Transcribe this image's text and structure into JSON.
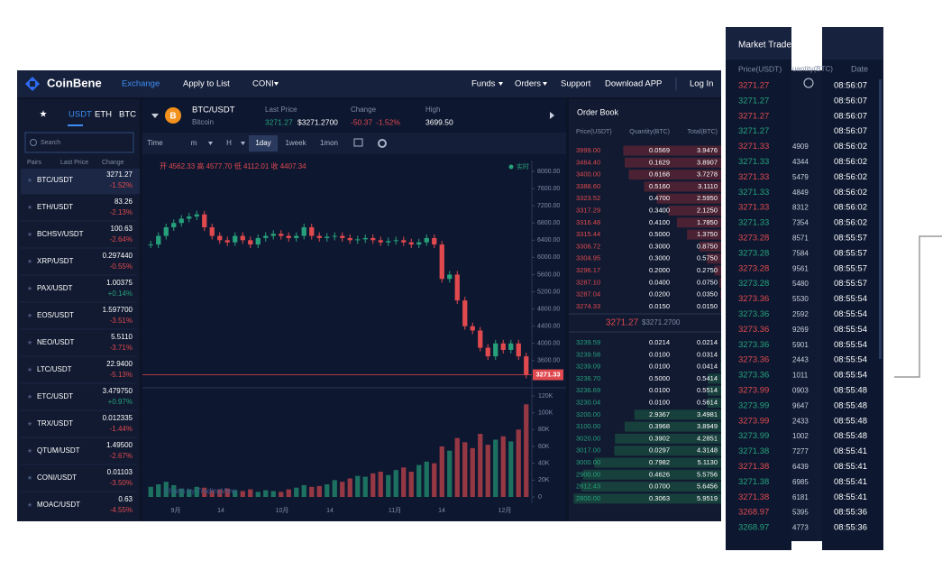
{
  "nav": {
    "brand": "CoinBene",
    "links": [
      "Exchange",
      "Apply to List",
      "CONI",
      "Funds",
      "Orders",
      "Support",
      "Download APP",
      "Log In"
    ]
  },
  "pairs_panel": {
    "tabs": [
      "USDT",
      "ETH",
      "BTC"
    ],
    "search_placeholder": "Search",
    "headers": [
      "Pairs",
      "Last Price",
      "Change"
    ],
    "rows": [
      [
        "BTC/USDT",
        "3271.27",
        "-1.52%"
      ],
      [
        "ETH/USDT",
        "83.26",
        "-2.13%"
      ],
      [
        "BCHSV/USDT",
        "100.63",
        "-2.64%"
      ],
      [
        "XRP/USDT",
        "0.297440",
        "-0.55%"
      ],
      [
        "PAX/USDT",
        "1.00375",
        "+0.14%"
      ],
      [
        "EOS/USDT",
        "1.597700",
        "-3.51%"
      ],
      [
        "NEO/USDT",
        "5.5110",
        "-3.71%"
      ],
      [
        "LTC/USDT",
        "22.9400",
        "-5.13%"
      ],
      [
        "ETC/USDT",
        "3.479750",
        "+0.97%"
      ],
      [
        "TRX/USDT",
        "0.012335",
        "-1.44%"
      ],
      [
        "QTUM/USDT",
        "1.49500",
        "-2.67%"
      ],
      [
        "CONI/USDT",
        "0.01103",
        "-3.50%"
      ],
      [
        "MOAC/USDT",
        "0.63",
        "-4.55%"
      ]
    ]
  },
  "ticker": {
    "pair": "BTC/USDT",
    "name": "Bitcoin",
    "last_price_label": "Last Price",
    "last_price": "3271.27",
    "last_price_usd": "$3271.2700",
    "change_label": "Change",
    "change": "-50.37",
    "change_pct": "-1.52%",
    "high_label": "High",
    "high": "3699.50"
  },
  "toolbar": [
    "Time",
    "m",
    "H",
    "1day",
    "1week",
    "1mon"
  ],
  "chart_data": {
    "type": "candlestick",
    "legend": "开 4562.33 高 4577.70 低 4112.01 收 4407.34",
    "realtime_label": "实时",
    "watermark": "Charts by TradingView",
    "x_labels": [
      "9月",
      "14",
      "10月",
      "14",
      "11月",
      "14",
      "12月"
    ],
    "closes": [
      6300,
      6500,
      6700,
      6800,
      6900,
      6950,
      7000,
      6700,
      6500,
      6400,
      6350,
      6500,
      6400,
      6300,
      6450,
      6500,
      6550,
      6500,
      6450,
      6500,
      6700,
      6500,
      6450,
      6480,
      6500,
      6450,
      6400,
      6420,
      6450,
      6400,
      6350,
      6380,
      6400,
      6350,
      6300,
      6350,
      6450,
      6300,
      5500,
      5600,
      5000,
      4400,
      4300,
      3900,
      3700,
      4000,
      3850,
      4000,
      3700,
      3271.33
    ],
    "volumes": [
      12000,
      15000,
      18000,
      14000,
      10000,
      9000,
      12000,
      11000,
      8000,
      9000,
      10000,
      8000,
      7000,
      9000,
      6000,
      8000,
      7000,
      6000,
      9000,
      11000,
      14000,
      12000,
      13000,
      15000,
      20000,
      18000,
      22000,
      25000,
      24000,
      28000,
      30000,
      26000,
      32000,
      35000,
      30000,
      38000,
      42000,
      40000,
      60000,
      55000,
      70000,
      65000,
      58000,
      75000,
      62000,
      68000,
      72000,
      66000,
      80000,
      110000
    ],
    "ylim": [
      3010,
      8210
    ],
    "yticks": [
      {
        "value": 8000,
        "label": "8000.00"
      },
      {
        "value": 7600,
        "label": "7600.00"
      },
      {
        "value": 7200,
        "label": "7200.00"
      },
      {
        "value": 6800,
        "label": "6800.00"
      },
      {
        "value": 6400,
        "label": "6400.00"
      },
      {
        "value": 6000,
        "label": "6000.00"
      },
      {
        "value": 5600,
        "label": "5600.00"
      },
      {
        "value": 5200,
        "label": "5200.00"
      },
      {
        "value": 4800,
        "label": "4800.00"
      },
      {
        "value": 4400,
        "label": "4400.00"
      },
      {
        "value": 4000,
        "label": "4000.00"
      },
      {
        "value": 3600,
        "label": "3600.00"
      }
    ],
    "vlim": [
      0,
      127500
    ],
    "vticks": [
      {
        "value": 120000,
        "label": "120K"
      },
      {
        "value": 100000,
        "label": "100K"
      },
      {
        "value": 80000,
        "label": "80K"
      },
      {
        "value": 60000,
        "label": "60K"
      },
      {
        "value": 40000,
        "label": "40K"
      },
      {
        "value": 20000,
        "label": "20K"
      },
      0
    ],
    "up_color": "#26a17b",
    "down_color": "#e0494e"
  },
  "order_book": {
    "title": "Order Book",
    "headers": [
      "Price(USDT)",
      "Quantity(BTC)",
      "Total(BTC)"
    ],
    "asks": [
      [
        "3999.00",
        "0.0569",
        3.9476
      ],
      [
        "3464.40",
        "0.1629",
        3.8907
      ],
      [
        "3400.00",
        "0.6168",
        3.7278
      ],
      [
        "3388.60",
        "0.5160",
        3.111
      ],
      [
        "3323.52",
        "0.4700",
        2.595
      ],
      [
        "3317.29",
        "0.3400",
        2.125
      ],
      [
        "3316.48",
        "0.4100",
        1.785
      ],
      [
        "3315.44",
        "0.5000",
        1.375
      ],
      [
        "3306.72",
        "0.3000",
        0.875
      ],
      [
        "3304.95",
        "0.3000",
        0.575
      ],
      [
        "3296.17",
        "0.2000",
        0.275
      ],
      [
        "3287.10",
        "0.0400",
        0.075
      ],
      [
        "3287.04",
        "0.0200",
        0.035
      ],
      [
        "3274.33",
        "0.0150",
        0.015
      ]
    ],
    "ask_value_labels": [
      "3.9476",
      "3.8907",
      "3.7278",
      "3.1110",
      "2.5950",
      "2.1250",
      "1.7850",
      "1.3750",
      "0.8750",
      "0.5750",
      "0.2750",
      "0.0750",
      "0.0350",
      "0.0150"
    ],
    "mid_price": "3271.27",
    "mid_price_usd": "$3271.2700",
    "bids": [
      [
        "3239.59",
        "0.0214",
        0.0214
      ],
      [
        "3239.58",
        "0.0100",
        0.0314
      ],
      [
        "3239.09",
        "0.0100",
        0.0414
      ],
      [
        "3236.70",
        "0.5000",
        0.5414
      ],
      [
        "3236.69",
        "0.0100",
        0.5514
      ],
      [
        "3230.04",
        "0.0100",
        0.5614
      ],
      [
        "3200.00",
        "2.9367",
        3.4981
      ],
      [
        "3100.00",
        "0.3968",
        3.8949
      ],
      [
        "3020.00",
        "0.3902",
        4.2851
      ],
      [
        "3017.00",
        "0.0297",
        4.3148
      ],
      [
        "3000.00",
        "0.7982",
        5.113
      ],
      [
        "2900.00",
        "0.4626",
        5.5756
      ],
      [
        "2812.43",
        "0.0700",
        5.6456
      ],
      [
        "2800.00",
        "0.3063",
        5.9519
      ]
    ],
    "bid_value_labels": [
      "0.0214",
      "0.0314",
      "0.0414",
      "0.5414",
      "0.5514",
      "0.5614",
      "3.4981",
      "3.8949",
      "4.2851",
      "4.3148",
      "5.1130",
      "5.5756",
      "5.6456",
      "5.9519"
    ]
  },
  "market_trades": {
    "title": "Market Trades",
    "price_header": "Price(USDT)",
    "quantity_header": "uantity(BTC)",
    "date_header": "Date",
    "prices": [
      {
        "price": "3271.27",
        "color": "#e0494e"
      },
      {
        "price": "3271.27",
        "color": "#26a17b"
      },
      {
        "price": "3271.27",
        "color": "#e0494e"
      },
      {
        "price": "3271.27",
        "color": "#26a17b"
      },
      {
        "price": "3271.33",
        "color": "#e0494e"
      },
      {
        "price": "3271.33",
        "color": "#26a17b"
      },
      {
        "price": "3271.33",
        "color": "#e0494e"
      },
      {
        "price": "3271.33",
        "color": "#26a17b"
      },
      {
        "price": "3271.33",
        "color": "#e0494e"
      },
      {
        "price": "3271.33",
        "color": "#26a17b"
      },
      {
        "price": "3273.28",
        "color": "#e0494e"
      },
      {
        "price": "3273.28",
        "color": "#26a17b"
      },
      {
        "price": "3273.28",
        "color": "#e0494e"
      },
      {
        "price": "3273.28",
        "color": "#26a17b"
      },
      {
        "price": "3273.36",
        "color": "#e0494e"
      },
      {
        "price": "3273.36",
        "color": "#26a17b"
      },
      {
        "price": "3273.36",
        "color": "#e0494e"
      },
      {
        "price": "3273.36",
        "color": "#26a17b"
      },
      {
        "price": "3273.36",
        "color": "#e0494e"
      },
      {
        "price": "3273.36",
        "color": "#26a17b"
      },
      {
        "price": "3273.99",
        "color": "#e0494e"
      },
      {
        "price": "3273.99",
        "color": "#26a17b"
      },
      {
        "price": "3273.99",
        "color": "#e0494e"
      },
      {
        "price": "3273.99",
        "color": "#26a17b"
      },
      {
        "price": "3271.38",
        "color": "#26a17b"
      },
      {
        "price": "3271.38",
        "color": "#e0494e"
      },
      {
        "price": "3271.38",
        "color": "#26a17b"
      },
      {
        "price": "3271.38",
        "color": "#e0494e"
      },
      {
        "price": "3268.97",
        "color": "#e0494e"
      },
      {
        "price": "3268.97",
        "color": "#26a17b"
      }
    ],
    "quantity_fragments": [
      "4909",
      "4344",
      "5479",
      "4849",
      "8312",
      "7354",
      "8571",
      "7584",
      "9561",
      "5480",
      "5530",
      "2592",
      "9269",
      "5901",
      "2443",
      "1011",
      "0903",
      "9647",
      "2433",
      "1002",
      "7277",
      "6439",
      "6985",
      "6181",
      "5395",
      "4773"
    ],
    "times": [
      "08:56:07",
      "08:56:07",
      "08:56:07",
      "08:56:07",
      "08:56:02",
      "08:56:02",
      "08:56:02",
      "08:56:02",
      "08:56:02",
      "08:56:02",
      "08:55:57",
      "08:55:57",
      "08:55:57",
      "08:55:57",
      "08:55:54",
      "08:55:54",
      "08:55:54",
      "08:55:54",
      "08:55:54",
      "08:55:54",
      "08:55:48",
      "08:55:48",
      "08:55:48",
      "08:55:48",
      "08:55:41",
      "08:55:41",
      "08:55:41",
      "08:55:41",
      "08:55:36",
      "08:55:36"
    ]
  }
}
